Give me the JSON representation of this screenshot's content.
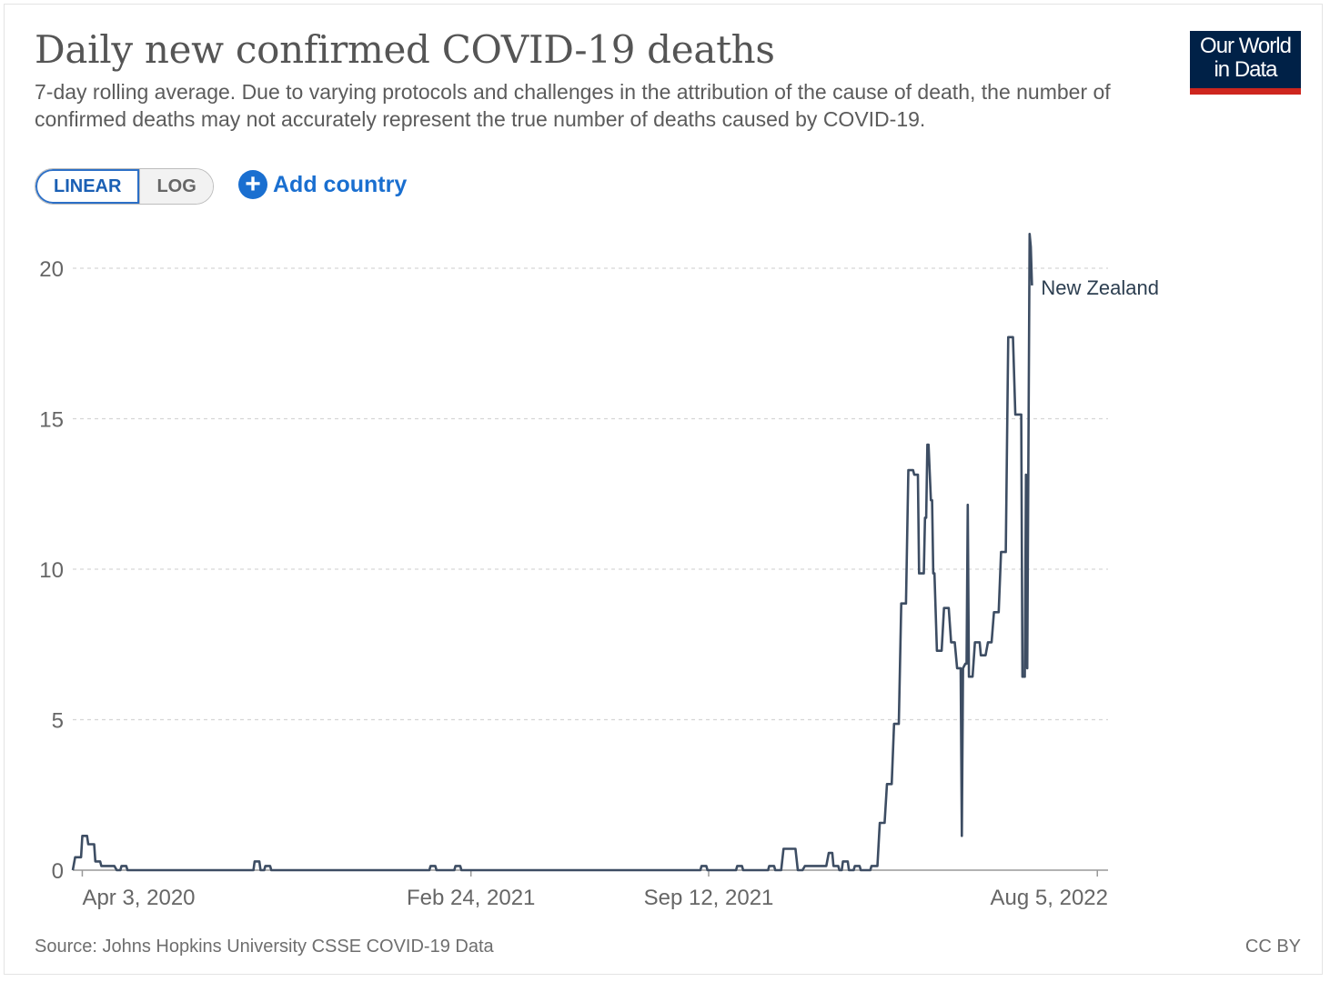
{
  "header": {
    "title": "Daily new confirmed COVID-19 deaths",
    "subtitle": "7-day rolling average. Due to varying protocols and challenges in the attribution of the cause of death, the number of confirmed deaths may not accurately represent the true number of deaths caused by COVID-19."
  },
  "logo": {
    "line1": "Our World",
    "line2": "in Data",
    "bg_color": "#002147",
    "bar_color": "#ce261e"
  },
  "controls": {
    "linear_label": "LINEAR",
    "log_label": "LOG",
    "add_country_label": "Add country",
    "add_icon": "plus-circle-icon",
    "accent_color": "#1a6fd0"
  },
  "footer": {
    "source": "Source: Johns Hopkins University CSSE COVID-19 Data",
    "license": "CC BY"
  },
  "chart_data": {
    "type": "line",
    "title": "Daily new confirmed COVID-19 deaths",
    "xlabel": "",
    "ylabel": "",
    "x_range": [
      "2020-03-26",
      "2022-08-14"
    ],
    "ylim": [
      0,
      20
    ],
    "yticks": [
      0,
      5,
      10,
      15,
      20
    ],
    "xticks": [
      {
        "date": "2020-04-03",
        "label": "Apr 3, 2020"
      },
      {
        "date": "2021-02-24",
        "label": "Feb 24, 2021"
      },
      {
        "date": "2021-09-12",
        "label": "Sep 12, 2021"
      },
      {
        "date": "2022-08-05",
        "label": "Aug 5, 2022"
      }
    ],
    "grid": "horizontal dashed",
    "legend": "inline label at line end",
    "series": [
      {
        "name": "New Zealand",
        "color": "#3d4d63",
        "points": [
          [
            "2020-03-26",
            0
          ],
          [
            "2020-03-28",
            0.43
          ],
          [
            "2020-04-02",
            0.43
          ],
          [
            "2020-04-03",
            1.14
          ],
          [
            "2020-04-07",
            1.14
          ],
          [
            "2020-04-08",
            0.86
          ],
          [
            "2020-04-13",
            0.86
          ],
          [
            "2020-04-14",
            0.29
          ],
          [
            "2020-04-18",
            0.29
          ],
          [
            "2020-04-19",
            0.14
          ],
          [
            "2020-04-30",
            0.14
          ],
          [
            "2020-05-02",
            0
          ],
          [
            "2020-05-05",
            0
          ],
          [
            "2020-05-06",
            0.14
          ],
          [
            "2020-05-10",
            0.14
          ],
          [
            "2020-05-11",
            0
          ],
          [
            "2020-08-25",
            0
          ],
          [
            "2020-08-26",
            0.29
          ],
          [
            "2020-08-30",
            0.29
          ],
          [
            "2020-08-31",
            0
          ],
          [
            "2020-09-03",
            0
          ],
          [
            "2020-09-04",
            0.14
          ],
          [
            "2020-09-08",
            0.14
          ],
          [
            "2020-09-09",
            0
          ],
          [
            "2021-01-20",
            0
          ],
          [
            "2021-01-21",
            0.14
          ],
          [
            "2021-01-25",
            0.14
          ],
          [
            "2021-01-26",
            0
          ],
          [
            "2021-02-10",
            0
          ],
          [
            "2021-02-11",
            0.14
          ],
          [
            "2021-02-15",
            0.14
          ],
          [
            "2021-02-16",
            0
          ],
          [
            "2021-09-05",
            0
          ],
          [
            "2021-09-06",
            0.14
          ],
          [
            "2021-09-10",
            0.14
          ],
          [
            "2021-09-11",
            0
          ],
          [
            "2021-10-05",
            0
          ],
          [
            "2021-10-06",
            0.14
          ],
          [
            "2021-10-10",
            0.14
          ],
          [
            "2021-10-11",
            0
          ],
          [
            "2021-11-01",
            0
          ],
          [
            "2021-11-02",
            0.14
          ],
          [
            "2021-11-06",
            0.14
          ],
          [
            "2021-11-07",
            0
          ],
          [
            "2021-11-12",
            0
          ],
          [
            "2021-11-14",
            0.71
          ],
          [
            "2021-11-24",
            0.71
          ],
          [
            "2021-11-26",
            0
          ],
          [
            "2021-11-30",
            0
          ],
          [
            "2021-12-02",
            0.14
          ],
          [
            "2021-12-20",
            0.14
          ],
          [
            "2021-12-22",
            0.57
          ],
          [
            "2021-12-25",
            0.57
          ],
          [
            "2021-12-26",
            0.14
          ],
          [
            "2021-12-30",
            0.14
          ],
          [
            "2021-12-31",
            0
          ],
          [
            "2022-01-02",
            0
          ],
          [
            "2022-01-03",
            0.29
          ],
          [
            "2022-01-07",
            0.29
          ],
          [
            "2022-01-08",
            0
          ],
          [
            "2022-01-12",
            0
          ],
          [
            "2022-01-13",
            0.14
          ],
          [
            "2022-01-17",
            0.14
          ],
          [
            "2022-01-18",
            0
          ],
          [
            "2022-01-26",
            0
          ],
          [
            "2022-01-27",
            0.14
          ],
          [
            "2022-02-01",
            0.14
          ],
          [
            "2022-02-03",
            1.57
          ],
          [
            "2022-02-07",
            1.57
          ],
          [
            "2022-02-09",
            2.86
          ],
          [
            "2022-02-13",
            2.86
          ],
          [
            "2022-02-15",
            4.86
          ],
          [
            "2022-02-19",
            4.86
          ],
          [
            "2022-02-21",
            8.86
          ],
          [
            "2022-02-25",
            8.86
          ],
          [
            "2022-02-27",
            13.29
          ],
          [
            "2022-03-03",
            13.29
          ],
          [
            "2022-03-04",
            13.14
          ],
          [
            "2022-03-07",
            13.14
          ],
          [
            "2022-03-08",
            9.86
          ],
          [
            "2022-03-12",
            9.86
          ],
          [
            "2022-03-13",
            11.71
          ],
          [
            "2022-03-14",
            11.71
          ],
          [
            "2022-03-15",
            14.14
          ],
          [
            "2022-03-16",
            14.14
          ],
          [
            "2022-03-18",
            12.29
          ],
          [
            "2022-03-19",
            12.29
          ],
          [
            "2022-03-20",
            9.86
          ],
          [
            "2022-03-21",
            9.86
          ],
          [
            "2022-03-23",
            7.29
          ],
          [
            "2022-03-27",
            7.29
          ],
          [
            "2022-03-29",
            8.71
          ],
          [
            "2022-04-02",
            8.71
          ],
          [
            "2022-04-04",
            7.57
          ],
          [
            "2022-04-07",
            7.57
          ],
          [
            "2022-04-09",
            6.71
          ],
          [
            "2022-04-12",
            6.71
          ],
          [
            "2022-04-13",
            1.14
          ],
          [
            "2022-04-14",
            6.71
          ],
          [
            "2022-04-16",
            6.86
          ],
          [
            "2022-04-17",
            6.86
          ],
          [
            "2022-04-18",
            12.14
          ],
          [
            "2022-04-19",
            6.43
          ],
          [
            "2022-04-22",
            6.43
          ],
          [
            "2022-04-24",
            7.57
          ],
          [
            "2022-04-28",
            7.57
          ],
          [
            "2022-04-29",
            7.14
          ],
          [
            "2022-05-03",
            7.14
          ],
          [
            "2022-05-05",
            7.57
          ],
          [
            "2022-05-08",
            7.57
          ],
          [
            "2022-05-10",
            8.57
          ],
          [
            "2022-05-14",
            8.57
          ],
          [
            "2022-05-16",
            10.57
          ],
          [
            "2022-05-20",
            10.57
          ],
          [
            "2022-05-22",
            17.71
          ],
          [
            "2022-05-26",
            17.71
          ],
          [
            "2022-05-28",
            15.14
          ],
          [
            "2022-06-02",
            15.14
          ],
          [
            "2022-06-03",
            6.43
          ],
          [
            "2022-06-05",
            6.43
          ],
          [
            "2022-06-06",
            13.14
          ],
          [
            "2022-06-07",
            6.71
          ],
          [
            "2022-06-09",
            21.14
          ],
          [
            "2022-06-10",
            20.71
          ],
          [
            "2022-06-11",
            19.43
          ]
        ]
      }
    ]
  }
}
